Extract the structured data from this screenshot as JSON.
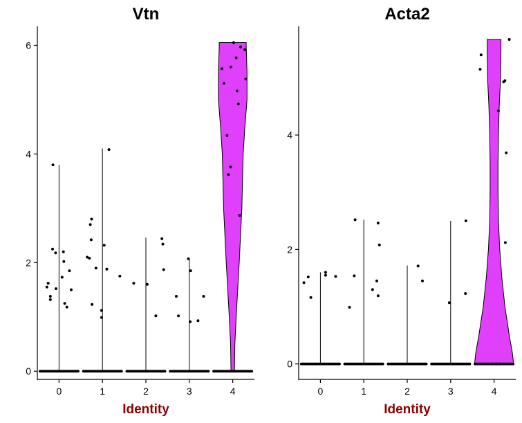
{
  "chart_data": [
    {
      "type": "violin",
      "title": "Vtn",
      "xlabel": "Identity",
      "ylabel": "",
      "categories": [
        "0",
        "1",
        "2",
        "3",
        "4"
      ],
      "y_ticks": [
        0,
        2,
        4,
        6
      ],
      "ylim": [
        -0.15,
        6.35
      ],
      "fill_colors": [
        "#f8766d",
        "#a3a500",
        "#00bf7d",
        "#00b0f6",
        "#e040fb"
      ],
      "violins": [
        {
          "category": "0",
          "max": 3.8,
          "profile": []
        },
        {
          "category": "1",
          "max": 4.1,
          "profile": []
        },
        {
          "category": "2",
          "max": 2.46,
          "profile": []
        },
        {
          "category": "3",
          "max": 2.07,
          "profile": []
        },
        {
          "category": "4",
          "max": 6.05,
          "profile": [
            [
              0,
              0.04
            ],
            [
              0.5,
              0.05
            ],
            [
              1.0,
              0.08
            ],
            [
              2.0,
              0.15
            ],
            [
              3.0,
              0.21
            ],
            [
              4.0,
              0.24
            ],
            [
              4.5,
              0.28
            ],
            [
              5.0,
              0.33
            ],
            [
              5.5,
              0.33
            ],
            [
              6.0,
              0.31
            ],
            [
              6.05,
              0.31
            ]
          ]
        }
      ],
      "points": [
        {
          "category": "0",
          "dx": -0.28,
          "y": 1.55
        },
        {
          "category": "0",
          "dx": -0.25,
          "y": 1.62
        },
        {
          "category": "0",
          "dx": -0.2,
          "y": 1.38
        },
        {
          "category": "0",
          "dx": -0.2,
          "y": 1.32
        },
        {
          "category": "0",
          "dx": -0.15,
          "y": 2.25
        },
        {
          "category": "0",
          "dx": -0.08,
          "y": 2.18
        },
        {
          "category": "0",
          "dx": -0.07,
          "y": 1.52
        },
        {
          "category": "0",
          "dx": -0.14,
          "y": 3.8
        },
        {
          "category": "0",
          "dx": 0.07,
          "y": 1.73
        },
        {
          "category": "0",
          "dx": 0.1,
          "y": 2.2
        },
        {
          "category": "0",
          "dx": 0.11,
          "y": 2.02
        },
        {
          "category": "0",
          "dx": 0.13,
          "y": 1.25
        },
        {
          "category": "0",
          "dx": 0.24,
          "y": 1.85
        },
        {
          "category": "0",
          "dx": 0.18,
          "y": 1.18
        },
        {
          "category": "0",
          "dx": 0.28,
          "y": 1.5
        },
        {
          "category": "1",
          "dx": -0.35,
          "y": 2.1
        },
        {
          "category": "1",
          "dx": -0.3,
          "y": 2.08
        },
        {
          "category": "1",
          "dx": -0.28,
          "y": 2.7
        },
        {
          "category": "1",
          "dx": -0.25,
          "y": 2.8
        },
        {
          "category": "1",
          "dx": -0.26,
          "y": 2.42
        },
        {
          "category": "1",
          "dx": -0.24,
          "y": 1.23
        },
        {
          "category": "1",
          "dx": -0.15,
          "y": 1.9
        },
        {
          "category": "1",
          "dx": -0.02,
          "y": 1.12
        },
        {
          "category": "1",
          "dx": -0.02,
          "y": 0.99
        },
        {
          "category": "1",
          "dx": 0.04,
          "y": 2.32
        },
        {
          "category": "1",
          "dx": 0.15,
          "y": 4.08
        },
        {
          "category": "1",
          "dx": 0.1,
          "y": 1.88
        },
        {
          "category": "1",
          "dx": 0.4,
          "y": 1.75
        },
        {
          "category": "2",
          "dx": -0.28,
          "y": 1.62
        },
        {
          "category": "2",
          "dx": 0.03,
          "y": 1.6
        },
        {
          "category": "2",
          "dx": 0.23,
          "y": 1.02
        },
        {
          "category": "2",
          "dx": 0.37,
          "y": 2.44
        },
        {
          "category": "2",
          "dx": 0.39,
          "y": 2.34
        },
        {
          "category": "2",
          "dx": 0.41,
          "y": 1.87
        },
        {
          "category": "3",
          "dx": -0.3,
          "y": 1.38
        },
        {
          "category": "3",
          "dx": -0.25,
          "y": 1.02
        },
        {
          "category": "3",
          "dx": -0.02,
          "y": 2.07
        },
        {
          "category": "3",
          "dx": 0.03,
          "y": 1.85
        },
        {
          "category": "3",
          "dx": 0.02,
          "y": 0.91
        },
        {
          "category": "3",
          "dx": 0.2,
          "y": 0.93
        },
        {
          "category": "3",
          "dx": 0.33,
          "y": 1.38
        },
        {
          "category": "4",
          "dx": -0.25,
          "y": 5.57
        },
        {
          "category": "4",
          "dx": -0.2,
          "y": 5.3
        },
        {
          "category": "4",
          "dx": -0.13,
          "y": 4.34
        },
        {
          "category": "4",
          "dx": -0.1,
          "y": 3.62
        },
        {
          "category": "4",
          "dx": -0.05,
          "y": 3.76
        },
        {
          "category": "4",
          "dx": -0.04,
          "y": 5.6
        },
        {
          "category": "4",
          "dx": 0.02,
          "y": 6.05
        },
        {
          "category": "4",
          "dx": 0.08,
          "y": 5.77
        },
        {
          "category": "4",
          "dx": 0.1,
          "y": 5.16
        },
        {
          "category": "4",
          "dx": 0.13,
          "y": 4.92
        },
        {
          "category": "4",
          "dx": 0.16,
          "y": 2.87
        },
        {
          "category": "4",
          "dx": 0.18,
          "y": 5.97
        },
        {
          "category": "4",
          "dx": 0.28,
          "y": 5.92
        },
        {
          "category": "4",
          "dx": 0.3,
          "y": 5.38
        }
      ]
    },
    {
      "type": "violin",
      "title": "Acta2",
      "xlabel": "Identity",
      "ylabel": "",
      "categories": [
        "0",
        "1",
        "2",
        "3",
        "4"
      ],
      "y_ticks": [
        0,
        2,
        4
      ],
      "ylim": [
        -0.27,
        5.9
      ],
      "fill_colors": [
        "#f8766d",
        "#a3a500",
        "#00bf7d",
        "#00b0f6",
        "#e040fb"
      ],
      "violins": [
        {
          "category": "0",
          "max": 1.6,
          "profile": []
        },
        {
          "category": "1",
          "max": 2.52,
          "profile": []
        },
        {
          "category": "2",
          "max": 1.72,
          "profile": []
        },
        {
          "category": "3",
          "max": 2.5,
          "profile": []
        },
        {
          "category": "4",
          "max": 5.67,
          "profile": [
            [
              0,
              0.45
            ],
            [
              0.2,
              0.42
            ],
            [
              0.5,
              0.35
            ],
            [
              1.0,
              0.25
            ],
            [
              1.5,
              0.18
            ],
            [
              2.0,
              0.13
            ],
            [
              2.5,
              0.1
            ],
            [
              3.0,
              0.09
            ],
            [
              3.5,
              0.09
            ],
            [
              4.0,
              0.1
            ],
            [
              4.5,
              0.12
            ],
            [
              5.0,
              0.15
            ],
            [
              5.5,
              0.16
            ],
            [
              5.67,
              0.16
            ]
          ]
        }
      ],
      "points": [
        {
          "category": "0",
          "dx": -0.38,
          "y": 1.42
        },
        {
          "category": "0",
          "dx": -0.28,
          "y": 1.52
        },
        {
          "category": "0",
          "dx": -0.22,
          "y": 1.16
        },
        {
          "category": "0",
          "dx": 0.12,
          "y": 1.6
        },
        {
          "category": "0",
          "dx": 0.12,
          "y": 1.55
        },
        {
          "category": "0",
          "dx": 0.35,
          "y": 1.53
        },
        {
          "category": "1",
          "dx": -0.33,
          "y": 0.99
        },
        {
          "category": "1",
          "dx": -0.22,
          "y": 1.54
        },
        {
          "category": "1",
          "dx": -0.2,
          "y": 2.52
        },
        {
          "category": "1",
          "dx": 0.2,
          "y": 1.3
        },
        {
          "category": "1",
          "dx": 0.3,
          "y": 1.45
        },
        {
          "category": "1",
          "dx": 0.33,
          "y": 2.46
        },
        {
          "category": "1",
          "dx": 0.36,
          "y": 2.08
        },
        {
          "category": "1",
          "dx": 0.33,
          "y": 1.19
        },
        {
          "category": "2",
          "dx": 0.25,
          "y": 1.71
        },
        {
          "category": "2",
          "dx": 0.35,
          "y": 1.45
        },
        {
          "category": "3",
          "dx": -0.03,
          "y": 1.07
        },
        {
          "category": "3",
          "dx": 0.35,
          "y": 2.5
        },
        {
          "category": "3",
          "dx": 0.34,
          "y": 1.23
        },
        {
          "category": "4",
          "dx": -0.32,
          "y": 5.15
        },
        {
          "category": "4",
          "dx": -0.3,
          "y": 5.4
        },
        {
          "category": "4",
          "dx": 0.1,
          "y": 4.42
        },
        {
          "category": "4",
          "dx": 0.22,
          "y": 4.93
        },
        {
          "category": "4",
          "dx": 0.25,
          "y": 4.95
        },
        {
          "category": "4",
          "dx": 0.26,
          "y": 2.12
        },
        {
          "category": "4",
          "dx": 0.28,
          "y": 3.69
        },
        {
          "category": "4",
          "dx": 0.35,
          "y": 5.67
        },
        {
          "category": "4",
          "dx": -0.05,
          "y": 0.0
        },
        {
          "category": "4",
          "dx": 0.05,
          "y": 0.0
        },
        {
          "category": "4",
          "dx": 0.12,
          "y": 0.0
        }
      ]
    }
  ]
}
